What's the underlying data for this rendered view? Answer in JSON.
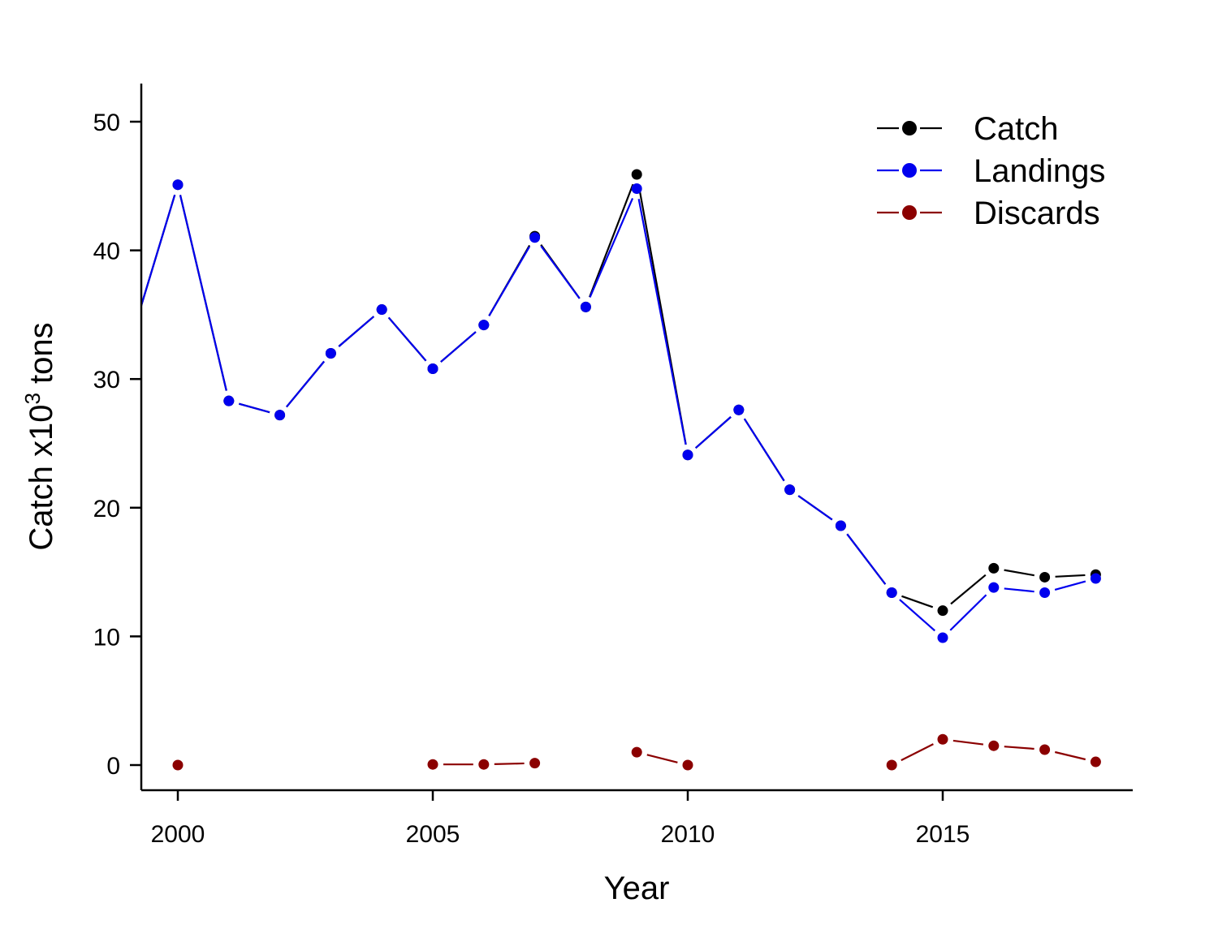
{
  "chart_data": {
    "type": "line",
    "title": "",
    "xlabel": "Year",
    "ylabel": {
      "base": "Catch x10",
      "sup": "3",
      "tail": " tons"
    },
    "xlim": [
      1999.3,
      2018.7
    ],
    "ylim": [
      -2,
      53
    ],
    "xticks": [
      2000,
      2005,
      2010,
      2015
    ],
    "yticks": [
      0,
      10,
      20,
      30,
      40,
      50
    ],
    "grid": false,
    "legend_position": "top-right",
    "series": [
      {
        "name": "Catch",
        "color": "#000000",
        "points": [
          [
            1999,
            32
          ],
          [
            2000,
            45.1
          ],
          [
            2001,
            28.3
          ],
          [
            2002,
            27.2
          ],
          [
            2003,
            32.0
          ],
          [
            2004,
            35.4
          ],
          [
            2005,
            30.8
          ],
          [
            2006,
            34.2
          ],
          [
            2007,
            41.1
          ],
          [
            2008,
            35.6
          ],
          [
            2009,
            45.9
          ],
          [
            2010,
            24.1
          ],
          [
            2011,
            27.6
          ],
          [
            2012,
            21.4
          ],
          [
            2013,
            18.6
          ],
          [
            2014,
            13.4
          ],
          [
            2015,
            12.0
          ],
          [
            2016,
            15.3
          ],
          [
            2017,
            14.6
          ],
          [
            2018,
            14.8
          ]
        ]
      },
      {
        "name": "Landings",
        "color": "#0000ee",
        "points": [
          [
            1999,
            32
          ],
          [
            2000,
            45.1
          ],
          [
            2001,
            28.3
          ],
          [
            2002,
            27.2
          ],
          [
            2003,
            32.0
          ],
          [
            2004,
            35.4
          ],
          [
            2005,
            30.8
          ],
          [
            2006,
            34.2
          ],
          [
            2007,
            41.0
          ],
          [
            2008,
            35.6
          ],
          [
            2009,
            44.8
          ],
          [
            2010,
            24.1
          ],
          [
            2011,
            27.6
          ],
          [
            2012,
            21.4
          ],
          [
            2013,
            18.6
          ],
          [
            2014,
            13.4
          ],
          [
            2015,
            9.9
          ],
          [
            2016,
            13.8
          ],
          [
            2017,
            13.4
          ],
          [
            2018,
            14.5
          ]
        ]
      },
      {
        "name": "Discards",
        "color": "#8b0000",
        "segments": [
          [
            [
              2000,
              0.0
            ]
          ],
          [
            [
              2005,
              0.05
            ],
            [
              2006,
              0.05
            ],
            [
              2007,
              0.15
            ]
          ],
          [
            [
              2009,
              1.0
            ],
            [
              2010,
              0.0
            ]
          ],
          [
            [
              2014,
              0.0
            ],
            [
              2015,
              2.0
            ],
            [
              2016,
              1.5
            ],
            [
              2017,
              1.2
            ],
            [
              2018,
              0.25
            ]
          ]
        ]
      }
    ]
  }
}
